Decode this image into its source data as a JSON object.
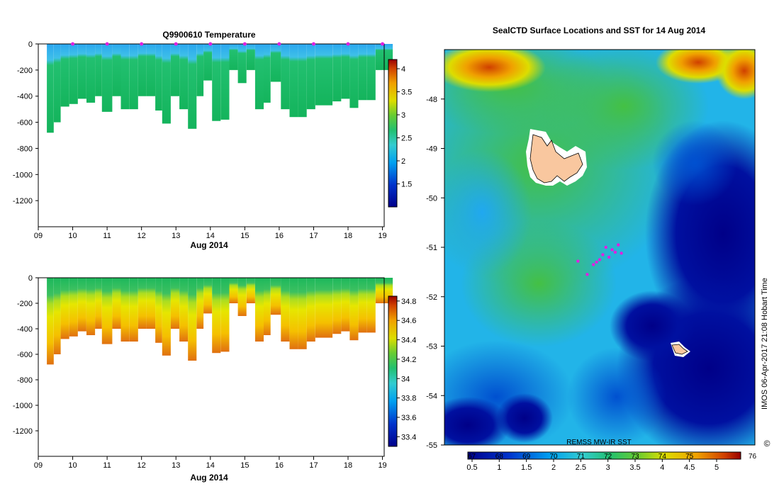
{
  "chart_data": [
    {
      "type": "heatmap",
      "title": "Q9900610  Temperature",
      "xlabel": "Aug 2014",
      "xticks": [
        "09",
        "10",
        "11",
        "12",
        "13",
        "14",
        "15",
        "16",
        "17",
        "18",
        "19"
      ],
      "xlim": [
        9,
        19.05
      ],
      "ylim": [
        -1400,
        0
      ],
      "yticks": [
        "0",
        "-200",
        "-400",
        "-600",
        "-800",
        "-1000",
        "-1200"
      ],
      "colorbar": {
        "ticks": [
          "1.5",
          "2",
          "2.5",
          "3",
          "3.5",
          "4"
        ],
        "range": [
          1.0,
          4.2
        ]
      },
      "profiles": [
        {
          "t": 9.25,
          "bottom": 680
        },
        {
          "t": 9.45,
          "bottom": 600
        },
        {
          "t": 9.65,
          "bottom": 480
        },
        {
          "t": 9.9,
          "bottom": 460
        },
        {
          "t": 10.15,
          "bottom": 420
        },
        {
          "t": 10.4,
          "bottom": 450
        },
        {
          "t": 10.65,
          "bottom": 400
        },
        {
          "t": 10.85,
          "bottom": 520
        },
        {
          "t": 11.15,
          "bottom": 400
        },
        {
          "t": 11.4,
          "bottom": 500
        },
        {
          "t": 11.65,
          "bottom": 500
        },
        {
          "t": 11.9,
          "bottom": 400
        },
        {
          "t": 12.15,
          "bottom": 400
        },
        {
          "t": 12.4,
          "bottom": 510
        },
        {
          "t": 12.6,
          "bottom": 610
        },
        {
          "t": 12.85,
          "bottom": 400
        },
        {
          "t": 13.1,
          "bottom": 500
        },
        {
          "t": 13.35,
          "bottom": 650
        },
        {
          "t": 13.6,
          "bottom": 400
        },
        {
          "t": 13.8,
          "bottom": 280
        },
        {
          "t": 14.05,
          "bottom": 590
        },
        {
          "t": 14.3,
          "bottom": 580
        },
        {
          "t": 14.55,
          "bottom": 200
        },
        {
          "t": 14.8,
          "bottom": 300
        },
        {
          "t": 15.05,
          "bottom": 200
        },
        {
          "t": 15.3,
          "bottom": 500
        },
        {
          "t": 15.55,
          "bottom": 450
        },
        {
          "t": 15.75,
          "bottom": 290
        },
        {
          "t": 16.05,
          "bottom": 500
        },
        {
          "t": 16.3,
          "bottom": 560
        },
        {
          "t": 16.55,
          "bottom": 560
        },
        {
          "t": 16.8,
          "bottom": 500
        },
        {
          "t": 17.05,
          "bottom": 470
        },
        {
          "t": 17.3,
          "bottom": 470
        },
        {
          "t": 17.55,
          "bottom": 440
        },
        {
          "t": 17.8,
          "bottom": 420
        },
        {
          "t": 18.05,
          "bottom": 490
        },
        {
          "t": 18.3,
          "bottom": 430
        },
        {
          "t": 18.55,
          "bottom": 430
        },
        {
          "t": 18.8,
          "bottom": 200
        },
        {
          "t": 19.05,
          "bottom": 200
        }
      ],
      "markers": [
        10,
        11,
        12,
        13,
        14,
        15,
        16,
        17,
        18,
        19
      ]
    },
    {
      "type": "heatmap",
      "title": "",
      "xlabel": "Aug 2014",
      "xticks": [
        "09",
        "10",
        "11",
        "12",
        "13",
        "14",
        "15",
        "16",
        "17",
        "18",
        "19"
      ],
      "xlim": [
        9,
        19.05
      ],
      "ylim": [
        -1400,
        0
      ],
      "yticks": [
        "0",
        "-200",
        "-400",
        "-600",
        "-800",
        "-1000",
        "-1200"
      ],
      "colorbar": {
        "ticks": [
          "33.4",
          "33.6",
          "33.8",
          "34",
          "34.2",
          "34.4",
          "34.6",
          "34.8"
        ],
        "range": [
          33.3,
          34.85
        ]
      }
    },
    {
      "type": "heatmap",
      "title": "SealCTD Surface Locations and SST for 14 Aug 2014",
      "yticks": [
        "-48",
        "-49",
        "-50",
        "-51",
        "-52",
        "-53",
        "-54",
        "-55"
      ],
      "ylim": [
        -55,
        -47
      ],
      "source": "REMSS MW-IR SST",
      "colorbar": {
        "bottom_ticks": [
          "0.5",
          "1",
          "1.5",
          "2",
          "2.5",
          "3",
          "3.5",
          "4",
          "4.5",
          "5"
        ],
        "top_ticks": [
          "67",
          "68",
          "69",
          "70",
          "71",
          "72",
          "73",
          "74",
          "75",
          "76"
        ],
        "top_left": "67",
        "top_right": "76"
      },
      "locations": [
        {
          "lon": 0.52,
          "lat": -51.0
        },
        {
          "lon": 0.55,
          "lat": -51.1
        },
        {
          "lon": 0.5,
          "lat": -51.25
        },
        {
          "lon": 0.48,
          "lat": -51.35
        },
        {
          "lon": 0.53,
          "lat": -51.2
        },
        {
          "lon": 0.46,
          "lat": -51.55
        },
        {
          "lon": 0.56,
          "lat": -50.95
        },
        {
          "lon": 0.51,
          "lat": -51.15
        },
        {
          "lon": 0.49,
          "lat": -51.3
        },
        {
          "lon": 0.43,
          "lat": -51.28
        },
        {
          "lon": 0.54,
          "lat": -51.05
        },
        {
          "lon": 0.57,
          "lat": -51.12
        }
      ]
    }
  ],
  "side_label": "IMOS 06-Apr-2017 21:08 Hobart Time",
  "copyright_mark": "©"
}
